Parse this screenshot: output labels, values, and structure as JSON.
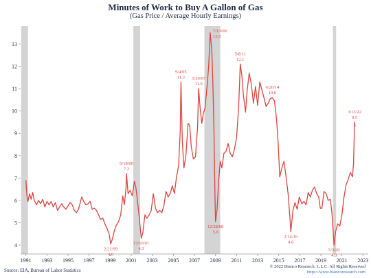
{
  "chart_data": {
    "type": "line",
    "title": "Minutes of Work to Buy A Gallon of Gas",
    "subtitle": "(Gas Price / Average Hourly Earnings)",
    "xlabel": "",
    "ylabel": "",
    "xlim": [
      1990.5,
      2023.5
    ],
    "ylim": [
      3.6,
      13.8
    ],
    "x_ticks": [
      {
        "value": 1991,
        "label": "1991"
      },
      {
        "value": 1993,
        "label": "1993"
      },
      {
        "value": 1995,
        "label": "1995"
      },
      {
        "value": 1997,
        "label": "1997"
      },
      {
        "value": 1999,
        "label": "1999"
      },
      {
        "value": 2001,
        "label": "2001"
      },
      {
        "value": 2003,
        "label": "2003"
      },
      {
        "value": 2005,
        "label": "2005"
      },
      {
        "value": 2007,
        "label": "2007"
      },
      {
        "value": 2009,
        "label": "2009"
      },
      {
        "value": 2011,
        "label": "2011"
      },
      {
        "value": 2013,
        "label": "2013"
      },
      {
        "value": 2015,
        "label": "2015"
      },
      {
        "value": 2017,
        "label": "2017"
      },
      {
        "value": 2019,
        "label": "2019"
      },
      {
        "value": 2021,
        "label": "2021"
      },
      {
        "value": 2023,
        "label": "2023"
      }
    ],
    "y_ticks": [
      {
        "value": 4,
        "label": "4"
      },
      {
        "value": 5,
        "label": "5"
      },
      {
        "value": 6,
        "label": "6"
      },
      {
        "value": 7,
        "label": "7"
      },
      {
        "value": 8,
        "label": "8"
      },
      {
        "value": 9,
        "label": "9"
      },
      {
        "value": 10,
        "label": "10"
      },
      {
        "value": 11,
        "label": "11"
      },
      {
        "value": 12,
        "label": "12"
      },
      {
        "value": 13,
        "label": "13"
      }
    ],
    "grid": false,
    "line_color": "#d9443f",
    "recession_shading": [
      {
        "start": 1990.55,
        "end": 1991.2
      },
      {
        "start": 2001.2,
        "end": 2001.85
      },
      {
        "start": 2007.95,
        "end": 2009.45
      },
      {
        "start": 2020.15,
        "end": 2020.45
      }
    ],
    "series": [
      {
        "points": [
          [
            1991.0,
            6.9
          ],
          [
            1991.1,
            6.2
          ],
          [
            1991.2,
            5.95
          ],
          [
            1991.35,
            6.3
          ],
          [
            1991.5,
            6.05
          ],
          [
            1991.65,
            6.35
          ],
          [
            1991.8,
            6.0
          ],
          [
            1992.0,
            5.8
          ],
          [
            1992.2,
            6.0
          ],
          [
            1992.4,
            5.85
          ],
          [
            1992.6,
            6.05
          ],
          [
            1992.8,
            5.7
          ],
          [
            1993.0,
            5.95
          ],
          [
            1993.2,
            5.8
          ],
          [
            1993.4,
            5.95
          ],
          [
            1993.6,
            5.7
          ],
          [
            1993.8,
            5.9
          ],
          [
            1994.0,
            5.55
          ],
          [
            1994.2,
            5.7
          ],
          [
            1994.4,
            5.85
          ],
          [
            1994.6,
            5.7
          ],
          [
            1994.8,
            5.6
          ],
          [
            1995.0,
            5.75
          ],
          [
            1995.2,
            5.9
          ],
          [
            1995.4,
            5.8
          ],
          [
            1995.6,
            5.55
          ],
          [
            1995.8,
            5.45
          ],
          [
            1996.0,
            5.6
          ],
          [
            1996.3,
            6.15
          ],
          [
            1996.5,
            5.95
          ],
          [
            1996.7,
            5.8
          ],
          [
            1996.9,
            5.85
          ],
          [
            1997.1,
            5.95
          ],
          [
            1997.3,
            5.6
          ],
          [
            1997.5,
            5.65
          ],
          [
            1997.7,
            5.55
          ],
          [
            1997.9,
            5.35
          ],
          [
            1998.1,
            5.15
          ],
          [
            1998.3,
            5.2
          ],
          [
            1998.5,
            4.95
          ],
          [
            1998.7,
            4.75
          ],
          [
            1998.9,
            4.5
          ],
          [
            1999.05,
            4.05
          ],
          [
            1999.2,
            4.25
          ],
          [
            1999.4,
            4.65
          ],
          [
            1999.6,
            4.9
          ],
          [
            1999.8,
            5.05
          ],
          [
            2000.0,
            5.35
          ],
          [
            2000.2,
            6.2
          ],
          [
            2000.35,
            5.8
          ],
          [
            2000.5,
            6.5
          ],
          [
            2000.55,
            7.2
          ],
          [
            2000.7,
            6.3
          ],
          [
            2000.9,
            6.45
          ],
          [
            2001.1,
            6.2
          ],
          [
            2001.3,
            6.85
          ],
          [
            2001.45,
            6.55
          ],
          [
            2001.6,
            5.95
          ],
          [
            2001.75,
            5.3
          ],
          [
            2001.95,
            4.3
          ],
          [
            2002.1,
            4.55
          ],
          [
            2002.3,
            5.35
          ],
          [
            2002.5,
            5.2
          ],
          [
            2002.7,
            5.35
          ],
          [
            2002.9,
            5.55
          ],
          [
            2003.1,
            6.3
          ],
          [
            2003.3,
            5.65
          ],
          [
            2003.5,
            5.45
          ],
          [
            2003.7,
            5.55
          ],
          [
            2003.9,
            5.45
          ],
          [
            2004.1,
            5.75
          ],
          [
            2004.3,
            6.4
          ],
          [
            2004.5,
            6.15
          ],
          [
            2004.7,
            6.3
          ],
          [
            2004.9,
            6.65
          ],
          [
            2005.1,
            6.3
          ],
          [
            2005.3,
            7.05
          ],
          [
            2005.5,
            7.55
          ],
          [
            2005.65,
            9.1
          ],
          [
            2005.72,
            11.3
          ],
          [
            2005.85,
            8.6
          ],
          [
            2006.0,
            7.45
          ],
          [
            2006.2,
            8.05
          ],
          [
            2006.4,
            9.45
          ],
          [
            2006.55,
            9.35
          ],
          [
            2006.7,
            8.4
          ],
          [
            2006.9,
            7.85
          ],
          [
            2007.1,
            7.95
          ],
          [
            2007.3,
            9.3
          ],
          [
            2007.4,
            11.0
          ],
          [
            2007.55,
            10.1
          ],
          [
            2007.7,
            9.45
          ],
          [
            2007.85,
            9.9
          ],
          [
            2008.0,
            10.1
          ],
          [
            2008.2,
            11.1
          ],
          [
            2008.35,
            12.0
          ],
          [
            2008.5,
            13.5
          ],
          [
            2008.65,
            12.7
          ],
          [
            2008.75,
            11.3
          ],
          [
            2008.85,
            9.2
          ],
          [
            2008.95,
            6.2
          ],
          [
            2009.0,
            5.05
          ],
          [
            2009.15,
            5.6
          ],
          [
            2009.3,
            6.9
          ],
          [
            2009.45,
            7.75
          ],
          [
            2009.6,
            7.45
          ],
          [
            2009.8,
            8.1
          ],
          [
            2010.0,
            8.2
          ],
          [
            2010.2,
            8.55
          ],
          [
            2010.4,
            8.1
          ],
          [
            2010.6,
            7.95
          ],
          [
            2010.8,
            8.3
          ],
          [
            2011.0,
            8.8
          ],
          [
            2011.2,
            10.2
          ],
          [
            2011.35,
            12.1
          ],
          [
            2011.5,
            11.6
          ],
          [
            2011.65,
            10.7
          ],
          [
            2011.85,
            9.95
          ],
          [
            2012.0,
            10.9
          ],
          [
            2012.2,
            11.7
          ],
          [
            2012.4,
            11.2
          ],
          [
            2012.6,
            10.35
          ],
          [
            2012.8,
            11.1
          ],
          [
            2013.0,
            10.25
          ],
          [
            2013.2,
            11.3
          ],
          [
            2013.4,
            10.95
          ],
          [
            2013.6,
            10.6
          ],
          [
            2013.8,
            10.2
          ],
          [
            2014.0,
            10.35
          ],
          [
            2014.2,
            10.55
          ],
          [
            2014.4,
            10.6
          ],
          [
            2014.6,
            10.45
          ],
          [
            2014.8,
            9.6
          ],
          [
            2014.95,
            8.55
          ],
          [
            2015.1,
            7.05
          ],
          [
            2015.3,
            7.45
          ],
          [
            2015.5,
            7.75
          ],
          [
            2015.7,
            7.05
          ],
          [
            2015.9,
            6.25
          ],
          [
            2016.05,
            5.3
          ],
          [
            2016.15,
            4.6
          ],
          [
            2016.35,
            5.55
          ],
          [
            2016.55,
            5.9
          ],
          [
            2016.75,
            5.6
          ],
          [
            2016.95,
            6.15
          ],
          [
            2017.2,
            5.85
          ],
          [
            2017.4,
            5.95
          ],
          [
            2017.6,
            5.8
          ],
          [
            2017.8,
            6.35
          ],
          [
            2018.0,
            6.15
          ],
          [
            2018.2,
            6.45
          ],
          [
            2018.4,
            6.6
          ],
          [
            2018.6,
            6.3
          ],
          [
            2018.8,
            6.15
          ],
          [
            2018.95,
            5.65
          ],
          [
            2019.1,
            5.65
          ],
          [
            2019.3,
            6.4
          ],
          [
            2019.5,
            6.3
          ],
          [
            2019.7,
            6.0
          ],
          [
            2019.9,
            6.05
          ],
          [
            2020.05,
            5.45
          ],
          [
            2020.25,
            4.0
          ],
          [
            2020.4,
            4.6
          ],
          [
            2020.6,
            4.95
          ],
          [
            2020.8,
            4.85
          ],
          [
            2021.0,
            5.35
          ],
          [
            2021.2,
            6.15
          ],
          [
            2021.4,
            6.7
          ],
          [
            2021.6,
            6.95
          ],
          [
            2021.8,
            7.25
          ],
          [
            2022.0,
            7.05
          ],
          [
            2022.1,
            7.6
          ],
          [
            2022.2,
            9.5
          ],
          [
            2022.25,
            9.3
          ]
        ]
      }
    ],
    "annotations": [
      {
        "date": "2/21/99",
        "value": "4.0",
        "x": 1999.05,
        "y": 4.05,
        "pos": "below"
      },
      {
        "date": "6/18/00",
        "value": "7.2",
        "x": 2000.55,
        "y": 7.2,
        "pos": "above"
      },
      {
        "date": "12/10/01",
        "value": "4.3",
        "x": 2001.95,
        "y": 4.3,
        "pos": "below"
      },
      {
        "date": "9/4/05",
        "value": "11.3",
        "x": 2005.72,
        "y": 11.3,
        "pos": "above"
      },
      {
        "date": "5/20/07",
        "value": "11.0",
        "x": 2007.4,
        "y": 11.0,
        "pos": "above"
      },
      {
        "date": "7/13/08",
        "value": "13.5",
        "x": 2008.5,
        "y": 13.5,
        "pos": "right"
      },
      {
        "date": "12/28/08",
        "value": "5.0",
        "x": 2009.0,
        "y": 5.05,
        "pos": "below"
      },
      {
        "date": "5/8/11",
        "value": "12.1",
        "x": 2011.35,
        "y": 12.1,
        "pos": "above"
      },
      {
        "date": "6/20/14",
        "value": "10.6",
        "x": 2014.4,
        "y": 10.6,
        "pos": "above"
      },
      {
        "date": "2/14/16",
        "value": "4.6",
        "x": 2016.15,
        "y": 4.6,
        "pos": "below"
      },
      {
        "date": "5/3/20",
        "value": "4.0",
        "x": 2020.25,
        "y": 4.0,
        "pos": "below"
      },
      {
        "date": "3/13/22",
        "value": "9.5",
        "x": 2022.2,
        "y": 9.5,
        "pos": "above"
      }
    ]
  },
  "footer": {
    "source": "Source: EIA, Bureau of Labor Statistics",
    "copyright": "© 2022 Bianco Research, L.L.C. All Rights Reserved",
    "website": "https://www.biancoresearch.com"
  }
}
